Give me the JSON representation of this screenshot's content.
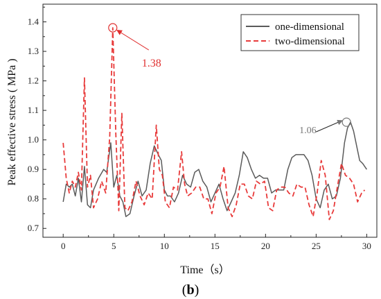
{
  "chart_data": {
    "type": "line",
    "xlabel": "Time（s）",
    "ylabel": "Peak effective stress ( MPa )",
    "xlim": [
      -2,
      31
    ],
    "ylim": [
      0.67,
      1.46
    ],
    "xticks": [
      "0",
      "5",
      "10",
      "15",
      "20",
      "25",
      "30"
    ],
    "yticks": [
      "0.7",
      "0.8",
      "0.9",
      "1.0",
      "1.1",
      "1.2",
      "1.3",
      "1.4"
    ],
    "legend_position": "top-right",
    "series": [
      {
        "name": "one-dimensional",
        "color": "#5a5a5a",
        "dash": "solid",
        "x": [
          0,
          0.3,
          0.6,
          0.9,
          1.2,
          1.5,
          1.8,
          2.1,
          2.4,
          2.7,
          3.0,
          3.5,
          4.0,
          4.3,
          4.7,
          5.0,
          5.3,
          5.6,
          5.9,
          6.2,
          6.6,
          7.0,
          7.4,
          7.8,
          8.2,
          8.6,
          9.0,
          9.4,
          9.7,
          10.0,
          10.3,
          10.6,
          11.0,
          11.4,
          11.8,
          12.2,
          12.6,
          13.0,
          13.4,
          13.8,
          14.2,
          14.6,
          15.0,
          15.4,
          15.8,
          16.2,
          16.6,
          17.0,
          17.4,
          17.8,
          18.2,
          18.6,
          19.0,
          19.4,
          19.8,
          20.2,
          20.6,
          21.0,
          21.4,
          21.8,
          22.2,
          22.6,
          23.0,
          23.4,
          23.8,
          24.2,
          24.6,
          25.0,
          25.4,
          25.8,
          26.2,
          26.6,
          27.0,
          27.4,
          27.8,
          28.1,
          28.4,
          28.7,
          29.0,
          29.3,
          29.6,
          30.0
        ],
        "y": [
          0.79,
          0.85,
          0.84,
          0.85,
          0.81,
          0.87,
          0.79,
          0.91,
          0.78,
          0.77,
          0.83,
          0.87,
          0.9,
          0.89,
          0.99,
          0.84,
          0.88,
          0.81,
          0.79,
          0.74,
          0.75,
          0.81,
          0.86,
          0.81,
          0.83,
          0.92,
          0.98,
          0.95,
          0.93,
          0.83,
          0.81,
          0.81,
          0.79,
          0.82,
          0.88,
          0.85,
          0.84,
          0.89,
          0.9,
          0.86,
          0.84,
          0.79,
          0.82,
          0.85,
          0.8,
          0.76,
          0.79,
          0.82,
          0.88,
          0.96,
          0.94,
          0.9,
          0.87,
          0.88,
          0.87,
          0.87,
          0.82,
          0.83,
          0.83,
          0.83,
          0.9,
          0.94,
          0.95,
          0.95,
          0.95,
          0.93,
          0.88,
          0.8,
          0.77,
          0.83,
          0.85,
          0.8,
          0.81,
          0.87,
          0.99,
          1.04,
          1.06,
          1.03,
          0.98,
          0.93,
          0.92,
          0.9
        ]
      },
      {
        "name": "two-dimensional",
        "color": "#e83a3a",
        "dash": "dashed",
        "x": [
          0,
          0.3,
          0.6,
          0.9,
          1.2,
          1.5,
          1.8,
          2.1,
          2.4,
          2.7,
          3.0,
          3.4,
          3.8,
          4.2,
          4.6,
          4.9,
          5.2,
          5.5,
          5.8,
          6.1,
          6.4,
          6.8,
          7.2,
          7.6,
          8.0,
          8.4,
          8.8,
          9.2,
          9.5,
          9.8,
          10.1,
          10.5,
          10.9,
          11.3,
          11.7,
          12.0,
          12.3,
          12.7,
          13.1,
          13.5,
          13.9,
          14.3,
          14.7,
          15.1,
          15.5,
          15.9,
          16.3,
          16.7,
          17.1,
          17.5,
          17.9,
          18.3,
          18.7,
          19.1,
          19.5,
          19.9,
          20.3,
          20.7,
          21.1,
          21.5,
          21.9,
          22.3,
          22.7,
          23.1,
          23.5,
          23.9,
          24.3,
          24.7,
          25.1,
          25.5,
          25.9,
          26.3,
          26.7,
          27.1,
          27.5,
          27.9,
          28.3,
          28.7,
          29.1,
          29.5,
          29.8
        ],
        "y": [
          0.99,
          0.87,
          0.82,
          0.86,
          0.84,
          0.89,
          0.83,
          1.21,
          0.84,
          0.88,
          0.77,
          0.8,
          0.86,
          0.82,
          1.01,
          1.38,
          1.02,
          0.76,
          1.09,
          0.77,
          0.76,
          0.79,
          0.86,
          0.81,
          0.78,
          0.82,
          0.8,
          1.05,
          0.9,
          0.88,
          0.79,
          0.77,
          0.84,
          0.83,
          0.96,
          0.85,
          0.81,
          0.82,
          0.84,
          0.84,
          0.8,
          0.8,
          0.75,
          0.82,
          0.84,
          0.91,
          0.77,
          0.74,
          0.78,
          0.85,
          0.85,
          0.81,
          0.8,
          0.86,
          0.85,
          0.86,
          0.77,
          0.76,
          0.83,
          0.84,
          0.84,
          0.82,
          0.81,
          0.85,
          0.84,
          0.84,
          0.78,
          0.74,
          0.82,
          0.93,
          0.88,
          0.73,
          0.76,
          0.84,
          0.92,
          0.88,
          0.87,
          0.85,
          0.79,
          0.82,
          0.83
        ]
      }
    ],
    "annotations": [
      {
        "text": "1.38",
        "at": [
          4.9,
          1.38
        ],
        "color": "#e03030"
      },
      {
        "text": "1.06",
        "at": [
          28.0,
          1.06
        ],
        "color": "#777777"
      }
    ]
  },
  "caption": {
    "open": "(",
    "letter": "b",
    "close": ")"
  }
}
